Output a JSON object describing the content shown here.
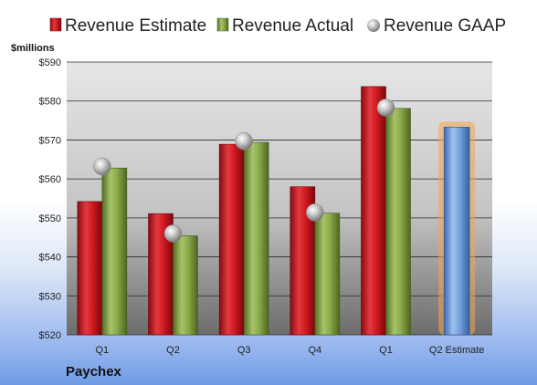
{
  "chart_data": {
    "type": "bar",
    "unit_label": "$millions",
    "company": "Paychex",
    "categories": [
      "Q1",
      "Q2",
      "Q3",
      "Q4",
      "Q1",
      "Q2 Estimate"
    ],
    "y_ticks": [
      "$520",
      "$530",
      "$540",
      "$550",
      "$560",
      "$570",
      "$580",
      "$590"
    ],
    "ylim": [
      520,
      590
    ],
    "grid": true,
    "legend_position": "top",
    "series": [
      {
        "name": "Revenue Estimate",
        "color": "#c8101b",
        "values": [
          554.2,
          551.1,
          568.9,
          558.0,
          583.7,
          null
        ]
      },
      {
        "name": "Revenue Actual",
        "color": "#7a9a3c",
        "values": [
          562.8,
          545.4,
          569.4,
          551.2,
          578.1,
          null
        ]
      },
      {
        "name": "Revenue GAAP",
        "color": "#b8b8b8",
        "marker": "sphere",
        "values": [
          563.2,
          546.0,
          569.7,
          551.4,
          578.3,
          null
        ]
      },
      {
        "name": "Q2 Estimate",
        "color": "#5b8ed6",
        "highlight": "#f5a54a",
        "values": [
          null,
          null,
          null,
          null,
          null,
          573.3
        ]
      }
    ]
  }
}
